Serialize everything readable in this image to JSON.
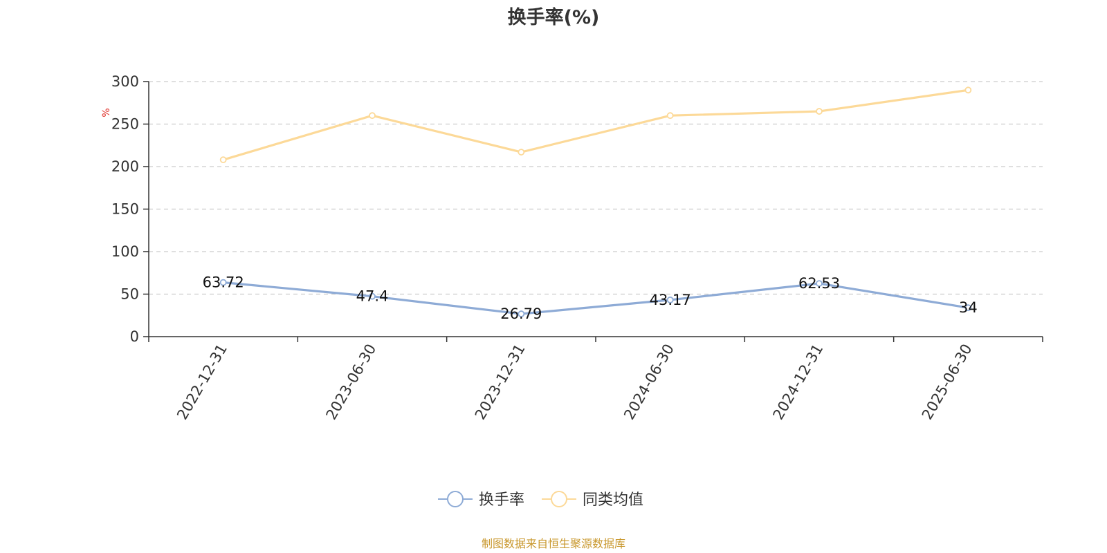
{
  "chart_data": {
    "type": "line",
    "title": "换手率(%)",
    "ylabel_unit": "%",
    "ylim": [
      0,
      300
    ],
    "yticks": [
      0,
      50,
      100,
      150,
      200,
      250,
      300
    ],
    "grid": "horizontal-dashed",
    "categories": [
      "2022-12-31",
      "2023-06-30",
      "2023-12-31",
      "2024-06-30",
      "2024-12-31",
      "2025-06-30"
    ],
    "series": [
      {
        "name": "换手率",
        "color": "#8eabd6",
        "show_labels": true,
        "values": [
          63.72,
          47.4,
          26.79,
          43.17,
          62.53,
          34
        ]
      },
      {
        "name": "同类均值",
        "color": "#fcd998",
        "show_labels": false,
        "values": [
          208,
          260,
          217,
          260,
          265,
          290
        ]
      }
    ],
    "legend_position": "bottom-center",
    "source": "制图数据来自恒生聚源数据库",
    "source_color": "#c9982e"
  }
}
